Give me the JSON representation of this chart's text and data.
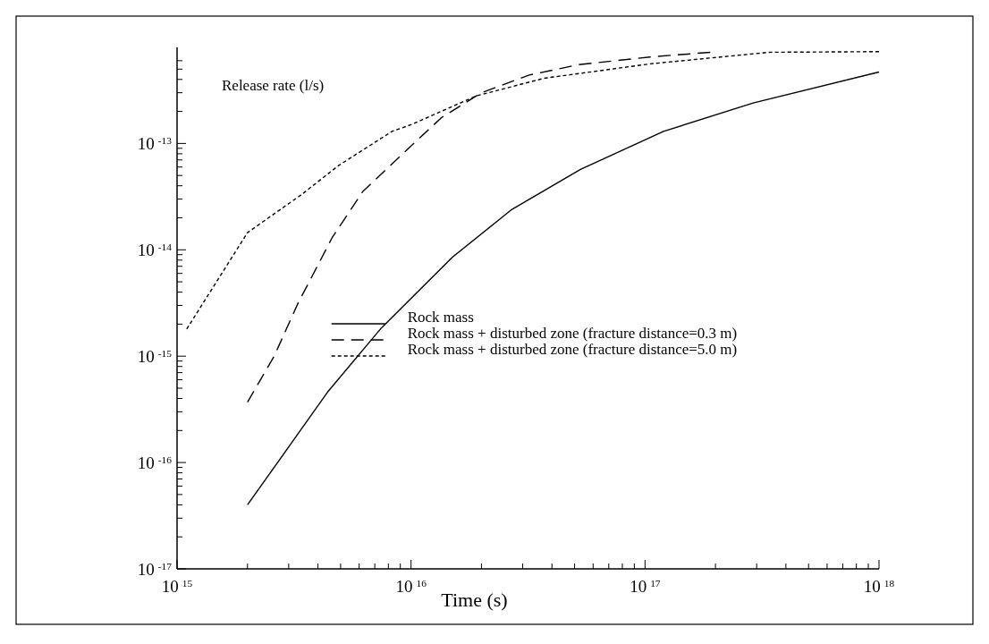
{
  "chart_data": {
    "type": "line",
    "xlabel": "Time (s)",
    "ylabel": "Release rate (l/s)",
    "log": "xy",
    "legend": "center",
    "grid": false,
    "xlim": [
      1000000000000000.0,
      1e+18
    ],
    "ylim": [
      1e-17,
      8e-13
    ],
    "xticks": [
      {
        "value": 1000000000000000.0,
        "label": "10$^{15}$"
      },
      {
        "value": 2000000000000000.0,
        "label": null
      },
      {
        "value": 3000000000000000.0,
        "label": null
      },
      {
        "value": 4000000000000000.0,
        "label": null
      },
      {
        "value": 5000000000000000.0,
        "label": null
      },
      {
        "value": 6000000000000000.0,
        "label": null
      },
      {
        "value": 7000000000000000.0,
        "label": null
      },
      {
        "value": 8000000000000000.0,
        "label": null
      },
      {
        "value": 9000000000000000.0,
        "label": null
      },
      {
        "value": 1e+16,
        "label": "10$^{16}$"
      },
      {
        "value": 2e+16,
        "label": null
      },
      {
        "value": 3e+16,
        "label": null
      },
      {
        "value": 4e+16,
        "label": null
      },
      {
        "value": 5e+16,
        "label": null
      },
      {
        "value": 6e+16,
        "label": null
      },
      {
        "value": 7e+16,
        "label": null
      },
      {
        "value": 8e+16,
        "label": null
      },
      {
        "value": 9e+16,
        "label": null
      },
      {
        "value": 1e+17,
        "label": "10$^{17}$"
      },
      {
        "value": 2e+17,
        "label": null
      },
      {
        "value": 3e+17,
        "label": null
      },
      {
        "value": 4e+17,
        "label": null
      },
      {
        "value": 5e+17,
        "label": null
      },
      {
        "value": 6e+17,
        "label": null
      },
      {
        "value": 7e+17,
        "label": null
      },
      {
        "value": 8e+17,
        "label": null
      },
      {
        "value": 9e+17,
        "label": null
      },
      {
        "value": 1e+18,
        "label": "10$^{18}$"
      }
    ],
    "yticks": [
      {
        "value": 1e-17,
        "label": "10$^{-17}$"
      },
      {
        "value": 2e-17,
        "label": null
      },
      {
        "value": 3e-17,
        "label": null
      },
      {
        "value": 4e-17,
        "label": null
      },
      {
        "value": 5e-17,
        "label": null
      },
      {
        "value": 6e-17,
        "label": null
      },
      {
        "value": 7e-17,
        "label": null
      },
      {
        "value": 8e-17,
        "label": null
      },
      {
        "value": 9e-17,
        "label": null
      },
      {
        "value": 1e-16,
        "label": "10$^{-16}$"
      },
      {
        "value": 2e-16,
        "label": null
      },
      {
        "value": 3e-16,
        "label": null
      },
      {
        "value": 4e-16,
        "label": null
      },
      {
        "value": 5e-16,
        "label": null
      },
      {
        "value": 6e-16,
        "label": null
      },
      {
        "value": 7e-16,
        "label": null
      },
      {
        "value": 8e-16,
        "label": null
      },
      {
        "value": 9e-16,
        "label": null
      },
      {
        "value": 1e-15,
        "label": "10$^{-15}$"
      },
      {
        "value": 2e-15,
        "label": null
      },
      {
        "value": 3e-15,
        "label": null
      },
      {
        "value": 4e-15,
        "label": null
      },
      {
        "value": 5e-15,
        "label": null
      },
      {
        "value": 6e-15,
        "label": null
      },
      {
        "value": 7e-15,
        "label": null
      },
      {
        "value": 8e-15,
        "label": null
      },
      {
        "value": 9e-15,
        "label": null
      },
      {
        "value": 1e-14,
        "label": "10$^{-14}$"
      },
      {
        "value": 2e-14,
        "label": null
      },
      {
        "value": 3e-14,
        "label": null
      },
      {
        "value": 4e-14,
        "label": null
      },
      {
        "value": 5e-14,
        "label": null
      },
      {
        "value": 6e-14,
        "label": null
      },
      {
        "value": 7e-14,
        "label": null
      },
      {
        "value": 8e-14,
        "label": null
      },
      {
        "value": 9e-14,
        "label": null
      },
      {
        "value": 1e-13,
        "label": "10$^{-13}$"
      },
      {
        "value": 2e-13,
        "label": null
      },
      {
        "value": 3e-13,
        "label": null
      },
      {
        "value": 4e-13,
        "label": null
      },
      {
        "value": 5e-13,
        "label": null
      },
      {
        "value": 6e-13,
        "label": null
      }
    ],
    "series": [
      {
        "name": "Rock mass",
        "color": "#000000",
        "line_style": "solid",
        "x": [
          2000000000000000.0,
          3100000000000000.0,
          4400000000000000.0,
          7400000000000000.0,
          1.2e+16,
          1.5e+16,
          2.7e+16,
          5.3e+16,
          1.2e+17,
          2.9e+17,
          1e+18
        ],
        "values": [
          4e-17,
          1.55e-16,
          4.6e-16,
          1.8e-15,
          5.2e-15,
          8.5e-15,
          2.4e-14,
          5.7e-14,
          1.3e-13,
          2.4e-13,
          4.7e-13
        ]
      },
      {
        "name": "Rock mass + disturbed zone (fracture distance=0.3 m)",
        "color": "#000000",
        "line_style": "dashed",
        "x": [
          2000000000000000.0,
          2600000000000000.0,
          3300000000000000.0,
          3600000000000000.0,
          4600000000000000.0,
          6200000000000000.0,
          9700000000000000.0,
          1.35e+16,
          2e+16,
          3.2e+16,
          5.2e+16,
          1.05e+17,
          1.9e+17
        ],
        "values": [
          3.7e-16,
          1e-15,
          3.2e-15,
          4.6e-15,
          1.3e-14,
          3.5e-14,
          8.9e-14,
          1.75e-13,
          3e-13,
          4.4e-13,
          5.5e-13,
          6.5e-13,
          7.2e-13
        ]
      },
      {
        "name": "Rock mass + disturbed zone (fracture distance=5.0 m)",
        "color": "#000000",
        "line_style": "dotted",
        "x": [
          1100000000000000.0,
          2000000000000000.0,
          3400000000000000.0,
          4900000000000000.0,
          8300000000000000.0,
          1e+16,
          1.9e+16,
          3.7e+16,
          1.05e+17,
          3.4e+17,
          1e+18
        ],
        "values": [
          1.8e-15,
          1.45e-14,
          3.3e-14,
          6.2e-14,
          1.3e-13,
          1.5e-13,
          2.8e-13,
          4.1e-13,
          5.6e-13,
          7.2e-13,
          7.3e-13
        ]
      }
    ]
  }
}
